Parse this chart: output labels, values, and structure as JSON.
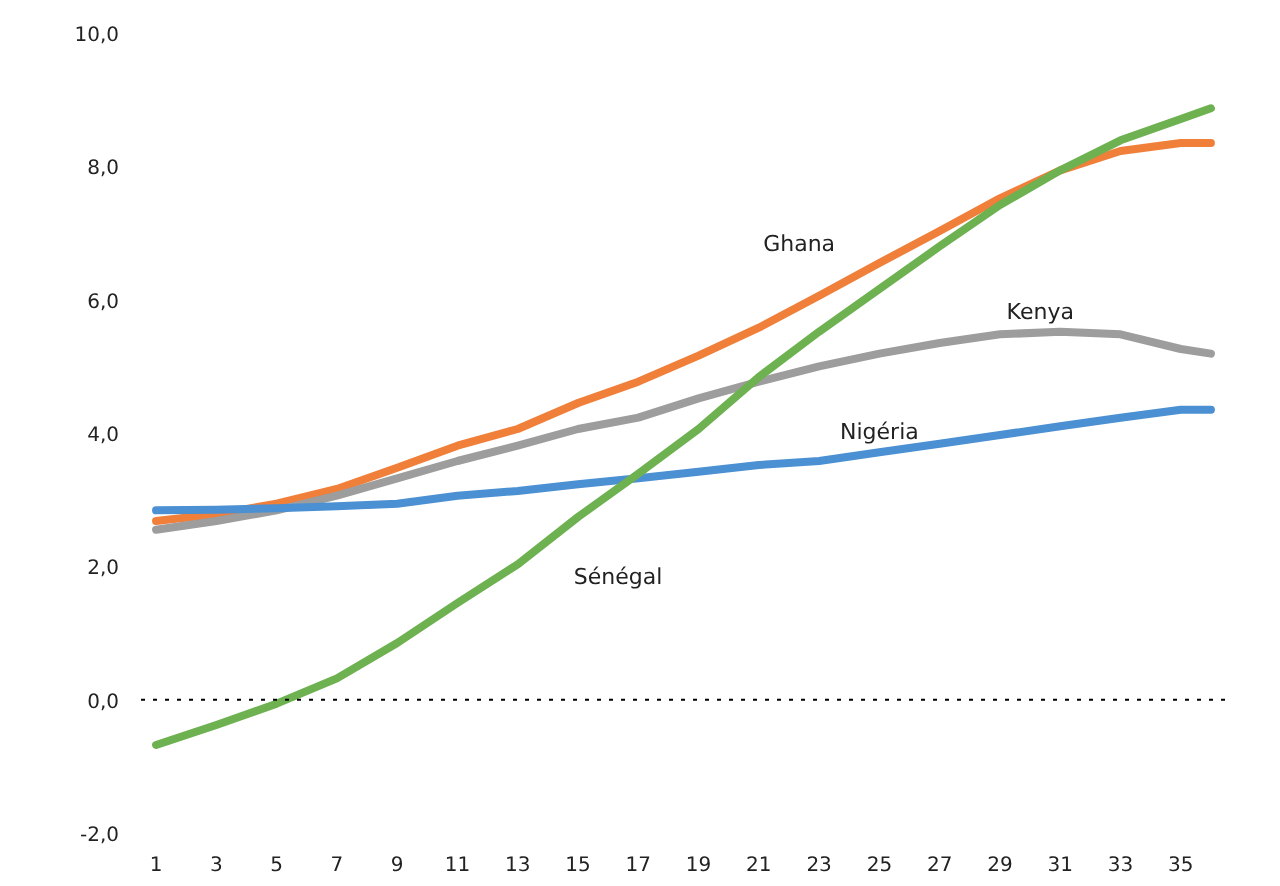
{
  "chart_data": {
    "type": "line",
    "x": [
      1,
      3,
      5,
      7,
      9,
      11,
      13,
      15,
      17,
      19,
      21,
      23,
      25,
      27,
      29,
      31,
      33,
      35,
      36
    ],
    "xlim": [
      0.5,
      36.6
    ],
    "xticks": [
      1,
      3,
      5,
      7,
      9,
      11,
      13,
      15,
      17,
      19,
      21,
      23,
      25,
      27,
      29,
      31,
      33,
      35
    ],
    "ylim": [
      -2,
      10
    ],
    "yticks": [
      {
        "value": -2,
        "label": "-2,0"
      },
      {
        "value": 0,
        "label": "0,0"
      },
      {
        "value": 2,
        "label": "2,0"
      },
      {
        "value": 4,
        "label": "4,0"
      },
      {
        "value": 6,
        "label": "6,0"
      },
      {
        "value": 8,
        "label": "8,0"
      },
      {
        "value": 10,
        "label": "10,0"
      }
    ],
    "grid": false,
    "legend": false,
    "marker": "none",
    "line_style": "solid",
    "ref_lines": [
      {
        "axis": "y",
        "value": 0,
        "label": null,
        "color": "#000000",
        "line_style": "dotted"
      }
    ],
    "series": [
      {
        "name": "Ghana",
        "color": "#f07f3a",
        "values": [
          2.68,
          2.78,
          2.94,
          3.16,
          3.48,
          3.81,
          4.06,
          4.45,
          4.77,
          5.16,
          5.58,
          6.06,
          6.55,
          7.03,
          7.52,
          7.94,
          8.23,
          8.35,
          8.35
        ]
      },
      {
        "name": "Kenya",
        "color": "#9d9d9d",
        "values": [
          2.55,
          2.68,
          2.84,
          3.06,
          3.32,
          3.58,
          3.81,
          4.06,
          4.23,
          4.52,
          4.77,
          5.0,
          5.19,
          5.35,
          5.48,
          5.52,
          5.48,
          5.26,
          5.19
        ]
      },
      {
        "name": "Nigéria",
        "color": "#4a90d2",
        "values": [
          2.84,
          2.85,
          2.87,
          2.9,
          2.94,
          3.06,
          3.13,
          3.23,
          3.32,
          3.42,
          3.52,
          3.58,
          3.71,
          3.84,
          3.97,
          4.1,
          4.23,
          4.35,
          4.35
        ]
      },
      {
        "name": "Sénégal",
        "color": "#6db150",
        "values": [
          -0.68,
          -0.38,
          -0.06,
          0.32,
          0.85,
          1.45,
          2.03,
          2.74,
          3.39,
          4.06,
          4.84,
          5.52,
          6.16,
          6.8,
          7.42,
          7.94,
          8.39,
          8.71,
          8.87
        ]
      }
    ]
  }
}
